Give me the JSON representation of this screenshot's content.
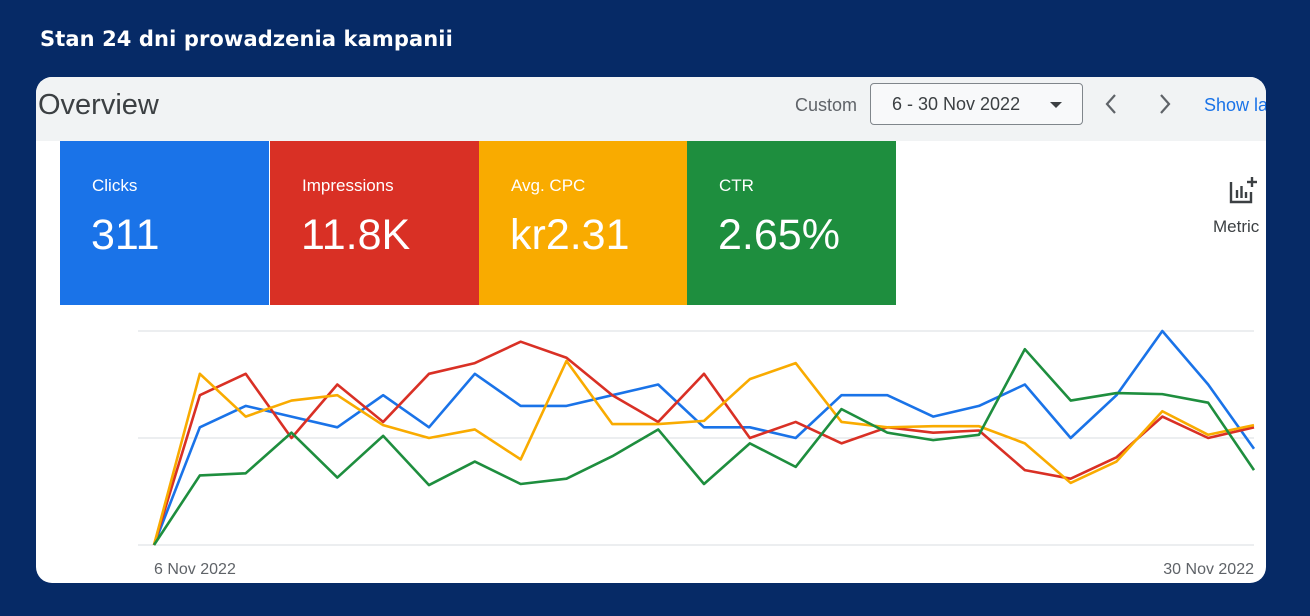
{
  "page": {
    "title": "Stan 24 dni prowadzenia kampanii"
  },
  "header": {
    "title": "Overview",
    "range_label": "Custom",
    "date_range": "6 - 30 Nov 2022",
    "show_link": "Show la"
  },
  "metrics": [
    {
      "label": "Clicks",
      "value": "311",
      "color": "#1a73e8"
    },
    {
      "label": "Impressions",
      "value": "11.8K",
      "color": "#d93025"
    },
    {
      "label": "Avg. CPC",
      "value": "kr2.31",
      "color": "#f9ab00"
    },
    {
      "label": "CTR",
      "value": "2.65%",
      "color": "#1e8e3e"
    }
  ],
  "metrics_button": {
    "label": "Metric",
    "icon": "add-chart-icon"
  },
  "chart_data": {
    "type": "line",
    "x": [
      "6 Nov 2022",
      "7 Nov 2022",
      "8 Nov 2022",
      "9 Nov 2022",
      "10 Nov 2022",
      "11 Nov 2022",
      "12 Nov 2022",
      "13 Nov 2022",
      "14 Nov 2022",
      "15 Nov 2022",
      "16 Nov 2022",
      "17 Nov 2022",
      "18 Nov 2022",
      "19 Nov 2022",
      "20 Nov 2022",
      "21 Nov 2022",
      "22 Nov 2022",
      "23 Nov 2022",
      "24 Nov 2022",
      "25 Nov 2022",
      "26 Nov 2022",
      "27 Nov 2022",
      "28 Nov 2022",
      "29 Nov 2022",
      "30 Nov 2022"
    ],
    "x_tick_labels": [
      "6 Nov 2022",
      "30 Nov 2022"
    ],
    "ylim": [
      0,
      2
    ],
    "grid": true,
    "legend": "none",
    "series": [
      {
        "color": "#1a73e8",
        "values": [
          0,
          1.1,
          1.3,
          1.2,
          1.1,
          1.4,
          1.1,
          1.6,
          1.3,
          1.3,
          1.4,
          1.5,
          1.1,
          1.1,
          1.0,
          1.4,
          1.4,
          1.2,
          1.3,
          1.5,
          1.0,
          1.4,
          2.0,
          1.5,
          0.9
        ]
      },
      {
        "color": "#d93025",
        "values": [
          0,
          1.4,
          1.6,
          1.0,
          1.5,
          1.15,
          1.6,
          1.7,
          1.9,
          1.75,
          1.4,
          1.15,
          1.6,
          1.0,
          1.15,
          0.95,
          1.1,
          1.05,
          1.07,
          0.7,
          0.62,
          0.82,
          1.2,
          1.0,
          1.1
        ]
      },
      {
        "color": "#f9ab00",
        "values": [
          0,
          1.6,
          1.2,
          1.35,
          1.4,
          1.12,
          1.0,
          1.08,
          0.8,
          1.72,
          1.13,
          1.13,
          1.16,
          1.55,
          1.7,
          1.15,
          1.1,
          1.11,
          1.11,
          0.95,
          0.58,
          0.78,
          1.25,
          1.03,
          1.12
        ]
      },
      {
        "color": "#1e8e3e",
        "values": [
          0,
          0.65,
          0.67,
          1.05,
          0.63,
          1.02,
          0.56,
          0.78,
          0.57,
          0.62,
          0.83,
          1.08,
          0.57,
          0.95,
          0.73,
          1.27,
          1.05,
          0.98,
          1.03,
          1.83,
          1.35,
          1.42,
          1.41,
          1.33,
          0.7
        ]
      }
    ]
  }
}
